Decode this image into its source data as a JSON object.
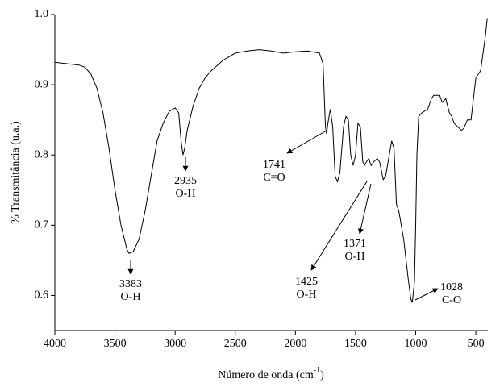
{
  "chart_data": {
    "type": "line",
    "x_label": [
      "Número de onda (cm",
      "-1",
      ")"
    ],
    "y_label": "% Transmitância (u.a.)",
    "xlim": [
      4000,
      400
    ],
    "ylim": [
      0.55,
      1.0
    ],
    "xticks": [
      4000,
      3500,
      3000,
      2500,
      2000,
      1500,
      1000,
      500
    ],
    "yticks": [
      0.6,
      0.7,
      0.8,
      0.9,
      {
        "value": 1,
        "label": "1.0"
      }
    ],
    "series": [
      {
        "color": "#000000",
        "x": [
          4000,
          3900,
          3800,
          3750,
          3700,
          3650,
          3600,
          3550,
          3500,
          3450,
          3400,
          3383,
          3350,
          3300,
          3250,
          3200,
          3150,
          3100,
          3050,
          3000,
          2970,
          2950,
          2935,
          2920,
          2900,
          2850,
          2800,
          2750,
          2700,
          2600,
          2500,
          2400,
          2300,
          2200,
          2100,
          2000,
          1900,
          1800,
          1770,
          1750,
          1741,
          1730,
          1710,
          1690,
          1670,
          1650,
          1630,
          1600,
          1580,
          1560,
          1540,
          1520,
          1500,
          1480,
          1460,
          1440,
          1425,
          1410,
          1390,
          1371,
          1350,
          1320,
          1300,
          1270,
          1250,
          1220,
          1200,
          1180,
          1160,
          1140,
          1120,
          1100,
          1080,
          1060,
          1040,
          1028,
          1010,
          1000,
          990,
          975,
          950,
          900,
          870,
          850,
          800,
          780,
          750,
          720,
          700,
          680,
          650,
          620,
          600,
          570,
          540,
          520,
          500,
          480,
          460,
          440,
          420,
          405
        ],
        "values": [
          0.932,
          0.93,
          0.928,
          0.925,
          0.915,
          0.895,
          0.86,
          0.81,
          0.75,
          0.7,
          0.665,
          0.66,
          0.662,
          0.68,
          0.72,
          0.77,
          0.82,
          0.845,
          0.862,
          0.867,
          0.86,
          0.82,
          0.8,
          0.81,
          0.835,
          0.87,
          0.895,
          0.91,
          0.92,
          0.935,
          0.945,
          0.948,
          0.95,
          0.948,
          0.945,
          0.947,
          0.948,
          0.945,
          0.93,
          0.84,
          0.83,
          0.845,
          0.865,
          0.84,
          0.77,
          0.762,
          0.775,
          0.84,
          0.855,
          0.85,
          0.8,
          0.785,
          0.8,
          0.845,
          0.84,
          0.79,
          0.785,
          0.79,
          0.795,
          0.785,
          0.79,
          0.795,
          0.79,
          0.765,
          0.77,
          0.8,
          0.82,
          0.81,
          0.73,
          0.72,
          0.7,
          0.68,
          0.65,
          0.62,
          0.595,
          0.59,
          0.62,
          0.7,
          0.8,
          0.855,
          0.86,
          0.865,
          0.88,
          0.885,
          0.885,
          0.875,
          0.88,
          0.86,
          0.855,
          0.845,
          0.84,
          0.835,
          0.838,
          0.85,
          0.85,
          0.88,
          0.91,
          0.915,
          0.92,
          0.945,
          0.97,
          0.995
        ]
      }
    ],
    "annotations": [
      {
        "label": "3383",
        "group": "O-H"
      },
      {
        "label": "2935",
        "group": "O-H"
      },
      {
        "label": "1741",
        "group": "C=O"
      },
      {
        "label": "1425",
        "group": "O-H"
      },
      {
        "label": "1371",
        "group": "O-H"
      },
      {
        "label": "1028",
        "group": "C-O"
      }
    ]
  }
}
